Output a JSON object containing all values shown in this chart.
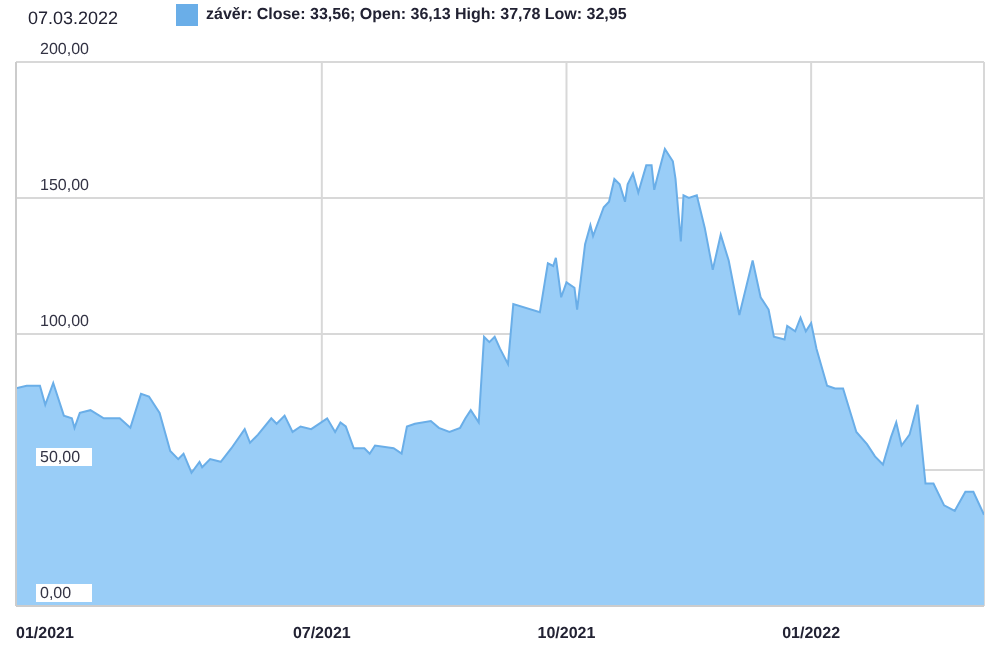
{
  "chart_data": {
    "type": "area",
    "annotations": [
      "07.03.2022"
    ],
    "legend": "top left",
    "grid": true,
    "xlim": [
      "2021-03-08",
      "2022-03-07"
    ],
    "xticks": [
      {
        "value": "2021-03-08",
        "label": "01/2021"
      },
      {
        "value": "2021-07-01",
        "label": "07/2021"
      },
      {
        "value": "2021-10-01",
        "label": "10/2021"
      },
      {
        "value": "2022-01-01",
        "label": "01/2022"
      }
    ],
    "ylim": [
      0,
      200
    ],
    "yticks": [
      {
        "value": 0,
        "label": "0,00"
      },
      {
        "value": 50,
        "label": "50,00"
      },
      {
        "value": 100,
        "label": "100,00"
      },
      {
        "value": 150,
        "label": "150,00"
      },
      {
        "value": 200,
        "label": "200,00"
      }
    ],
    "x": [
      "2021-03-08",
      "2021-03-12",
      "2021-03-17",
      "2021-03-19",
      "2021-03-22",
      "2021-03-26",
      "2021-03-29",
      "2021-03-30",
      "2021-04-01",
      "2021-04-05",
      "2021-04-10",
      "2021-04-16",
      "2021-04-20",
      "2021-04-24",
      "2021-04-27",
      "2021-05-01",
      "2021-05-05",
      "2021-05-08",
      "2021-05-10",
      "2021-05-13",
      "2021-05-16",
      "2021-05-17",
      "2021-05-20",
      "2021-05-24",
      "2021-05-28",
      "2021-06-02",
      "2021-06-04",
      "2021-06-07",
      "2021-06-12",
      "2021-06-14",
      "2021-06-17",
      "2021-06-20",
      "2021-06-23",
      "2021-06-27",
      "2021-07-03",
      "2021-07-06",
      "2021-07-08",
      "2021-07-10",
      "2021-07-13",
      "2021-07-17",
      "2021-07-19",
      "2021-07-21",
      "2021-07-28",
      "2021-07-31",
      "2021-08-02",
      "2021-08-05",
      "2021-08-11",
      "2021-08-14",
      "2021-08-18",
      "2021-08-22",
      "2021-08-24",
      "2021-08-26",
      "2021-08-29",
      "2021-08-31",
      "2021-09-02",
      "2021-09-04",
      "2021-09-06",
      "2021-09-09",
      "2021-09-11",
      "2021-09-21",
      "2021-09-24",
      "2021-09-26",
      "2021-09-27",
      "2021-09-29",
      "2021-10-01",
      "2021-10-04",
      "2021-10-05",
      "2021-10-08",
      "2021-10-10",
      "2021-10-11",
      "2021-10-15",
      "2021-10-17",
      "2021-10-19",
      "2021-10-21",
      "2021-10-23",
      "2021-10-24",
      "2021-10-26",
      "2021-10-28",
      "2021-10-31",
      "2021-11-02",
      "2021-11-03",
      "2021-11-04",
      "2021-11-07",
      "2021-11-10",
      "2021-11-11",
      "2021-11-13",
      "2021-11-14",
      "2021-11-16",
      "2021-11-19",
      "2021-11-22",
      "2021-11-25",
      "2021-11-28",
      "2021-12-01",
      "2021-12-05",
      "2021-12-10",
      "2021-12-13",
      "2021-12-16",
      "2021-12-18",
      "2021-12-22",
      "2021-12-23",
      "2021-12-26",
      "2021-12-28",
      "2021-12-30",
      "2022-01-01",
      "2022-01-03",
      "2022-01-07",
      "2022-01-10",
      "2022-01-13",
      "2022-01-18",
      "2022-01-22",
      "2022-01-25",
      "2022-01-28",
      "2022-01-31",
      "2022-02-02",
      "2022-02-04",
      "2022-02-07",
      "2022-02-10",
      "2022-02-13",
      "2022-02-16",
      "2022-02-20",
      "2022-02-24",
      "2022-02-28",
      "2022-03-03",
      "2022-03-07"
    ],
    "series": [
      {
        "name": "závěr: Close: 33,56; Open: 36,13 High: 37,78 Low: 32,95",
        "color": "#99cdf7",
        "values": [
          80,
          81,
          81,
          74,
          82,
          70,
          69,
          65.5,
          71,
          72,
          69,
          69,
          65.5,
          78,
          77,
          71,
          57,
          54,
          56,
          49,
          53,
          51,
          54,
          53,
          58,
          65,
          60,
          63,
          69,
          67,
          70,
          64,
          66,
          65,
          69,
          64,
          67.5,
          66,
          58,
          58,
          56,
          59,
          58,
          56,
          66,
          67,
          68,
          65.5,
          64,
          65.5,
          69,
          72,
          67.5,
          99,
          97,
          99,
          94.6,
          89,
          111,
          108,
          126,
          125,
          128,
          113.5,
          119,
          117,
          109,
          133,
          140,
          136,
          146.6,
          148.6,
          157,
          155,
          148.6,
          155,
          159,
          152,
          162,
          162,
          153,
          157,
          168,
          163.5,
          157,
          134,
          151,
          150,
          151,
          139,
          123.6,
          136.5,
          127,
          107,
          127,
          113.5,
          109,
          99,
          98,
          103,
          101,
          106,
          101,
          104,
          94.6,
          81,
          80,
          80,
          64,
          59.5,
          55,
          52,
          62,
          67.5,
          59,
          63,
          74,
          45,
          45,
          37,
          35,
          42,
          42,
          33.56
        ]
      }
    ]
  }
}
